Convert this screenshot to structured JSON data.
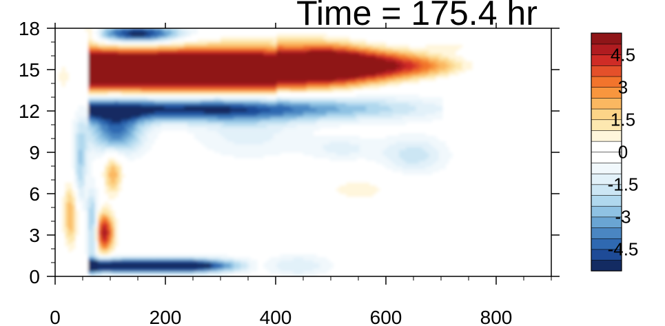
{
  "chart_data": {
    "type": "heatmap",
    "title": "Time = 175.4 hr",
    "xlabel": "",
    "ylabel": "",
    "xlim": [
      0,
      900
    ],
    "ylim": [
      0,
      18
    ],
    "x_ticks": [
      0,
      200,
      400,
      600,
      800
    ],
    "y_ticks": [
      0,
      3,
      6,
      9,
      12,
      15,
      18
    ],
    "colorbar": {
      "levels": [
        -5.5,
        -5,
        -4.5,
        -4,
        -3.5,
        -3,
        -2.5,
        -2,
        -1.5,
        -1,
        -0.5,
        0.5,
        1,
        1.5,
        2,
        2.5,
        3,
        3.5,
        4,
        4.5,
        5,
        5.5
      ],
      "labels": [
        "4.5",
        "3",
        "1.5",
        "0",
        "-1.5",
        "-3",
        "-4.5"
      ],
      "colors": [
        "#132b62",
        "#1e4b97",
        "#2f69b1",
        "#4a86c2",
        "#6aa5d3",
        "#8fc2e3",
        "#b0d8ee",
        "#cce6f4",
        "#e2f1f9",
        "#f1f8fc",
        "#ffffff",
        "#ffffff",
        "#fff6dc",
        "#fde8b0",
        "#fcd488",
        "#fbb861",
        "#f8963e",
        "#f2742c",
        "#e4502a",
        "#cf2c26",
        "#b01c20",
        "#8f1518"
      ]
    },
    "features": [
      {
        "name": "upper-positive-band",
        "x": [
          60,
          760
        ],
        "y_center": 15.1,
        "value": 6
      },
      {
        "name": "negative-band-below",
        "x": [
          60,
          700
        ],
        "y_center": 12.3,
        "value": -4
      },
      {
        "name": "near-surface-negative",
        "x": [
          60,
          300
        ],
        "y_center": 0.8,
        "value": -5
      },
      {
        "name": "top-left-negative",
        "x": [
          50,
          260
        ],
        "y_center": 17.6,
        "value": -5
      },
      {
        "name": "low-level-positive",
        "x": [
          60,
          120
        ],
        "y_center": 3.5,
        "value": 4
      },
      {
        "name": "mid-positive-patch",
        "x": [
          470,
          640
        ],
        "y_center": 6.3,
        "value": 1
      }
    ]
  }
}
